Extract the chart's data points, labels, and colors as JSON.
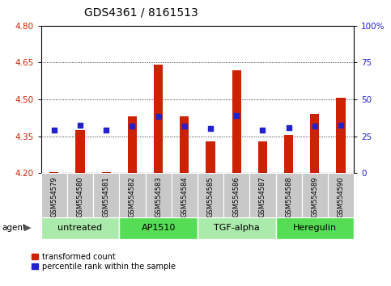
{
  "title": "GDS4361 / 8161513",
  "samples": [
    "GSM554579",
    "GSM554580",
    "GSM554581",
    "GSM554582",
    "GSM554583",
    "GSM554584",
    "GSM554585",
    "GSM554586",
    "GSM554587",
    "GSM554588",
    "GSM554589",
    "GSM554590"
  ],
  "red_values": [
    4.205,
    4.375,
    4.205,
    4.43,
    4.64,
    4.43,
    4.33,
    4.62,
    4.33,
    4.355,
    4.44,
    4.505
  ],
  "blue_values": [
    4.375,
    4.395,
    4.375,
    4.39,
    4.43,
    4.39,
    4.38,
    4.435,
    4.375,
    4.385,
    4.39,
    4.395
  ],
  "ymin": 4.2,
  "ymax": 4.8,
  "yticks": [
    4.2,
    4.35,
    4.5,
    4.65,
    4.8
  ],
  "y2ticks": [
    0,
    25,
    50,
    75,
    100
  ],
  "y2labels": [
    "0",
    "25",
    "50",
    "75",
    "100%"
  ],
  "groups": [
    {
      "label": "untreated",
      "start": 0,
      "end": 3,
      "color": "#AAEAAA"
    },
    {
      "label": "AP1510",
      "start": 3,
      "end": 6,
      "color": "#55DD55"
    },
    {
      "label": "TGF-alpha",
      "start": 6,
      "end": 9,
      "color": "#AAEAAA"
    },
    {
      "label": "Heregulin",
      "start": 9,
      "end": 12,
      "color": "#55DD55"
    }
  ],
  "bar_color": "#CC2200",
  "dot_color": "#2222CC",
  "bar_width": 0.35,
  "dot_size": 22,
  "grid_color": "#000000",
  "axis_color_left": "#CC2200",
  "axis_color_right": "#2222CC",
  "legend_red": "transformed count",
  "legend_blue": "percentile rank within the sample",
  "agent_label": "agent",
  "sample_bg_color": "#C8C8C8",
  "title_fontsize": 10,
  "tick_fontsize": 7.5,
  "sample_fontsize": 6,
  "group_fontsize": 8
}
